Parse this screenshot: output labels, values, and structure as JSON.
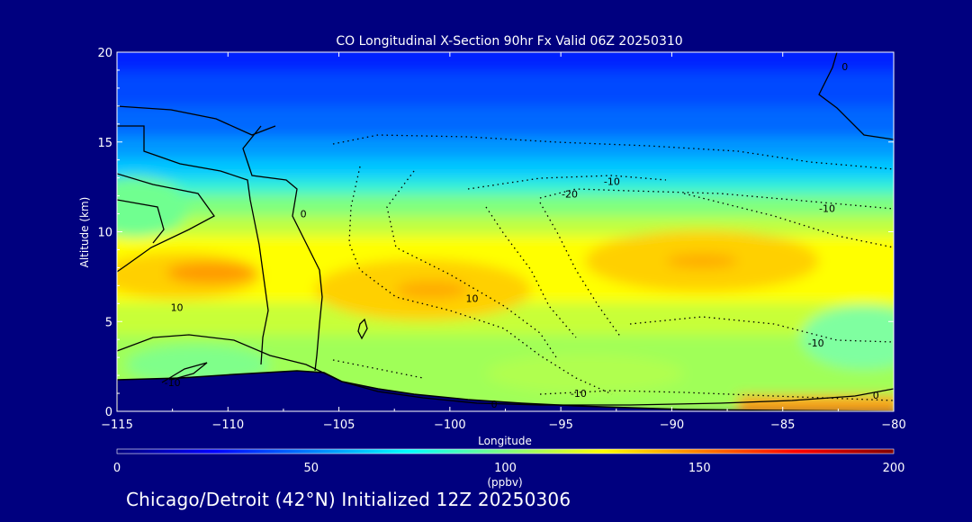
{
  "chart_data": {
    "type": "heatmap",
    "title": "CO Longitudinal X-Section 90hr  Fx Valid 06Z 20250310",
    "xlabel": "Longitude",
    "ylabel": "Altitude (km)",
    "xlim": [
      -115,
      -80
    ],
    "ylim": [
      0,
      20
    ],
    "x_ticks": [
      -115,
      -110,
      -105,
      -100,
      -95,
      -90,
      -85,
      -80
    ],
    "x_tick_labels": [
      "−115",
      "−110",
      "−105",
      "−100",
      "−95",
      "−90",
      "−85",
      "−80"
    ],
    "y_ticks": [
      0,
      5,
      10,
      15,
      20
    ],
    "y_tick_labels": [
      "0",
      "5",
      "10",
      "15",
      "20"
    ],
    "colorbar": {
      "label": "(ppbv)",
      "range": [
        0,
        200
      ],
      "ticks": [
        0,
        50,
        100,
        150,
        200
      ],
      "tick_labels": [
        "0",
        "50",
        "100",
        "150",
        "200"
      ]
    },
    "contour_labels": [
      {
        "text": "10",
        "x": -112.3,
        "y": 5.8
      },
      {
        "text": "-10",
        "x": -112.5,
        "y": 1.6
      },
      {
        "text": "0",
        "x": -106.6,
        "y": 11.0
      },
      {
        "text": "10",
        "x": -99.0,
        "y": 6.3
      },
      {
        "text": "-20",
        "x": -94.6,
        "y": 12.1
      },
      {
        "text": "-10",
        "x": -92.7,
        "y": 12.8
      },
      {
        "text": "-10",
        "x": -83.0,
        "y": 11.3
      },
      {
        "text": "-10",
        "x": -83.5,
        "y": 3.8
      },
      {
        "text": "-10",
        "x": -94.2,
        "y": 1.0
      },
      {
        "text": "0",
        "x": -98.0,
        "y": 0.4
      },
      {
        "text": "0",
        "x": -80.8,
        "y": 0.9
      },
      {
        "text": "0",
        "x": -82.2,
        "y": 19.2
      }
    ]
  },
  "footer": {
    "caption": "Chicago/Detroit (42°N) Initialized 12Z 20250306"
  },
  "colors": {
    "background": "#00007f",
    "terrain": "#00007f",
    "colormap": [
      "#00007f",
      "#0000ff",
      "#007fff",
      "#00ffff",
      "#7fff7f",
      "#ffff00",
      "#ff7f00",
      "#ff0000",
      "#7f0000"
    ]
  }
}
